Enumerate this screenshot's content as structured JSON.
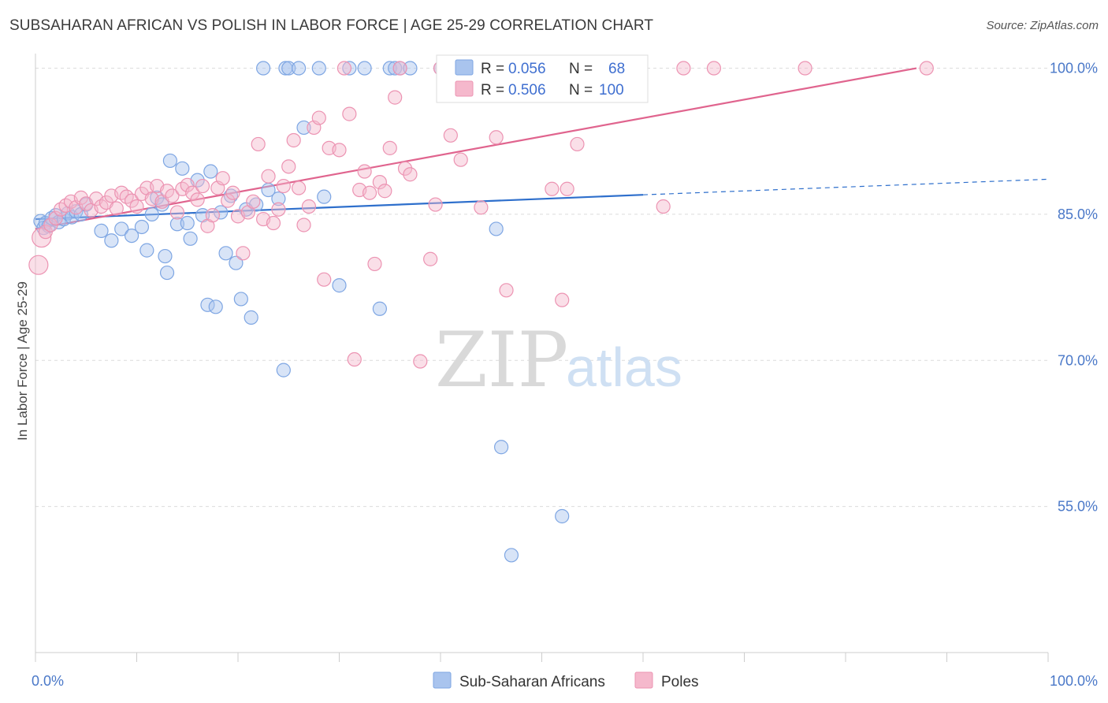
{
  "header": {
    "title": "SUBSAHARAN AFRICAN VS POLISH IN LABOR FORCE | AGE 25-29 CORRELATION CHART",
    "source": "Source: ZipAtlas.com"
  },
  "watermark": {
    "zip": "ZIP",
    "atlas": "atlas"
  },
  "legend_top": {
    "rows": [
      {
        "r_label": "R = ",
        "r_value": "0.056",
        "n_label": "N = ",
        "n_value": "68",
        "color": "#a9c4ee"
      },
      {
        "r_label": "R = ",
        "r_value": "0.506",
        "n_label": "N = ",
        "n_value": "100",
        "color": "#f5b8cc"
      }
    ]
  },
  "chart_data": {
    "type": "scatter",
    "title": "SUBSAHARAN AFRICAN VS POLISH IN LABOR FORCE | AGE 25-29 CORRELATION CHART",
    "xlabel": "",
    "ylabel": "In Labor Force | Age 25-29",
    "xlim": [
      0,
      100
    ],
    "ylim": [
      40,
      101.5
    ],
    "y_ticks": [
      {
        "value": 100,
        "label": "100.0%"
      },
      {
        "value": 85,
        "label": "85.0%"
      },
      {
        "value": 70,
        "label": "70.0%"
      },
      {
        "value": 55,
        "label": "55.0%"
      }
    ],
    "x_tick_labels": [
      {
        "value": 0,
        "label": "0.0%"
      },
      {
        "value": 100,
        "label": "100.0%"
      }
    ],
    "grid": true,
    "legend_position": "top-center",
    "series": [
      {
        "name": "Sub-Saharan Africans",
        "color": "#a9c4ee",
        "stroke": "#7ea6e3",
        "line_color": "#2e6fcc",
        "trend": {
          "x0": 0,
          "y0": 84.5,
          "x1": 60,
          "y1": 87.0,
          "dash_x1": 100,
          "dash_y1": 88.6
        },
        "points": [
          [
            0.5,
            84.3
          ],
          [
            0.8,
            83.6
          ],
          [
            1.0,
            84.1
          ],
          [
            1.3,
            83.8
          ],
          [
            1.6,
            84.6
          ],
          [
            2.0,
            84.9
          ],
          [
            2.3,
            84.2
          ],
          [
            2.8,
            84.5
          ],
          [
            3.2,
            85.1
          ],
          [
            3.6,
            84.7
          ],
          [
            4.0,
            85.3
          ],
          [
            4.5,
            85.0
          ],
          [
            5.0,
            86.0
          ],
          [
            6.5,
            83.3
          ],
          [
            7.5,
            82.3
          ],
          [
            8.5,
            83.5
          ],
          [
            9.5,
            82.8
          ],
          [
            10.5,
            83.7
          ],
          [
            11.0,
            81.3
          ],
          [
            11.5,
            85.0
          ],
          [
            12.0,
            86.7
          ],
          [
            12.5,
            86.0
          ],
          [
            12.8,
            80.7
          ],
          [
            13.0,
            79.0
          ],
          [
            13.3,
            90.5
          ],
          [
            14.0,
            84.0
          ],
          [
            14.5,
            89.7
          ],
          [
            15.0,
            84.1
          ],
          [
            15.3,
            82.5
          ],
          [
            16.0,
            88.5
          ],
          [
            16.5,
            84.9
          ],
          [
            17.0,
            75.7
          ],
          [
            17.3,
            89.4
          ],
          [
            17.8,
            75.5
          ],
          [
            18.3,
            85.2
          ],
          [
            18.8,
            81.0
          ],
          [
            19.3,
            86.9
          ],
          [
            19.8,
            80.0
          ],
          [
            20.3,
            76.3
          ],
          [
            20.8,
            85.5
          ],
          [
            21.3,
            74.4
          ],
          [
            21.8,
            86.0
          ],
          [
            22.5,
            100.0
          ],
          [
            23.0,
            87.5
          ],
          [
            24.0,
            86.6
          ],
          [
            24.5,
            69.0
          ],
          [
            24.7,
            100.0
          ],
          [
            25.0,
            100.0
          ],
          [
            26.0,
            100.0
          ],
          [
            26.5,
            93.9
          ],
          [
            28.0,
            100.0
          ],
          [
            28.5,
            86.8
          ],
          [
            30.0,
            77.7
          ],
          [
            31.0,
            100.0
          ],
          [
            32.5,
            100.0
          ],
          [
            34.0,
            75.3
          ],
          [
            35.0,
            100.0
          ],
          [
            35.5,
            100.0
          ],
          [
            36.0,
            100.0
          ],
          [
            37.0,
            100.0
          ],
          [
            40.0,
            100.0
          ],
          [
            44.0,
            100.0
          ],
          [
            45.5,
            83.5
          ],
          [
            46.0,
            61.1
          ],
          [
            47.0,
            50.0
          ],
          [
            50.0,
            100.0
          ],
          [
            52.0,
            54.0
          ],
          [
            57.0,
            100.0
          ]
        ]
      },
      {
        "name": "Poles",
        "color": "#f5b8cc",
        "stroke": "#ec93b2",
        "line_color": "#e0648e",
        "trend": {
          "x0": 0,
          "y0": 83.5,
          "x1": 87,
          "y1": 100.0
        },
        "points": [
          [
            0.3,
            79.8
          ],
          [
            0.6,
            82.6
          ],
          [
            1.0,
            83.2
          ],
          [
            1.5,
            83.9
          ],
          [
            2.0,
            84.6
          ],
          [
            2.5,
            85.5
          ],
          [
            3.0,
            85.9
          ],
          [
            3.5,
            86.3
          ],
          [
            4.0,
            85.7
          ],
          [
            4.5,
            86.7
          ],
          [
            5.0,
            86.1
          ],
          [
            5.5,
            85.4
          ],
          [
            6.0,
            86.6
          ],
          [
            6.5,
            85.8
          ],
          [
            7.0,
            86.2
          ],
          [
            7.5,
            86.9
          ],
          [
            8.0,
            85.6
          ],
          [
            8.5,
            87.2
          ],
          [
            9.0,
            86.8
          ],
          [
            9.5,
            86.4
          ],
          [
            10.0,
            85.8
          ],
          [
            10.5,
            87.1
          ],
          [
            11.0,
            87.7
          ],
          [
            11.5,
            86.6
          ],
          [
            12.0,
            87.9
          ],
          [
            12.5,
            86.3
          ],
          [
            13.0,
            87.4
          ],
          [
            13.5,
            86.9
          ],
          [
            14.0,
            85.2
          ],
          [
            14.5,
            87.6
          ],
          [
            15.0,
            88.0
          ],
          [
            15.5,
            87.2
          ],
          [
            16.0,
            86.5
          ],
          [
            16.5,
            87.9
          ],
          [
            17.0,
            83.8
          ],
          [
            17.5,
            84.9
          ],
          [
            18.0,
            87.7
          ],
          [
            18.5,
            88.7
          ],
          [
            19.0,
            86.4
          ],
          [
            19.5,
            87.2
          ],
          [
            20.0,
            84.8
          ],
          [
            20.5,
            81.0
          ],
          [
            21.0,
            85.2
          ],
          [
            21.5,
            86.3
          ],
          [
            22.0,
            92.2
          ],
          [
            22.5,
            84.5
          ],
          [
            23.0,
            88.9
          ],
          [
            23.5,
            84.1
          ],
          [
            24.0,
            85.5
          ],
          [
            24.5,
            87.9
          ],
          [
            25.0,
            89.9
          ],
          [
            25.5,
            92.6
          ],
          [
            26.0,
            87.7
          ],
          [
            26.5,
            83.9
          ],
          [
            27.0,
            85.8
          ],
          [
            27.5,
            93.9
          ],
          [
            28.0,
            94.9
          ],
          [
            28.5,
            78.3
          ],
          [
            29.0,
            91.8
          ],
          [
            30.0,
            91.6
          ],
          [
            30.5,
            100.0
          ],
          [
            31.0,
            95.3
          ],
          [
            31.5,
            70.1
          ],
          [
            32.0,
            87.5
          ],
          [
            32.5,
            89.4
          ],
          [
            33.0,
            87.2
          ],
          [
            33.5,
            79.9
          ],
          [
            34.0,
            88.3
          ],
          [
            34.5,
            87.4
          ],
          [
            35.0,
            91.8
          ],
          [
            35.5,
            97.0
          ],
          [
            36.0,
            100.0
          ],
          [
            36.5,
            89.7
          ],
          [
            37.0,
            89.1
          ],
          [
            38.0,
            69.9
          ],
          [
            39.0,
            80.4
          ],
          [
            39.5,
            86.0
          ],
          [
            40.0,
            100.0
          ],
          [
            41.0,
            93.1
          ],
          [
            42.0,
            90.6
          ],
          [
            42.5,
            100.0
          ],
          [
            43.0,
            100.0
          ],
          [
            44.0,
            85.7
          ],
          [
            45.0,
            100.0
          ],
          [
            45.5,
            92.9
          ],
          [
            46.0,
            100.0
          ],
          [
            46.5,
            77.2
          ],
          [
            48.0,
            100.0
          ],
          [
            50.0,
            100.0
          ],
          [
            51.0,
            87.6
          ],
          [
            52.0,
            76.2
          ],
          [
            52.5,
            87.6
          ],
          [
            53.5,
            92.2
          ],
          [
            54.0,
            100.0
          ],
          [
            55.0,
            100.0
          ],
          [
            62.0,
            85.8
          ],
          [
            64.0,
            100.0
          ],
          [
            67.0,
            100.0
          ],
          [
            76.0,
            100.0
          ],
          [
            88.0,
            100.0
          ]
        ]
      }
    ]
  }
}
